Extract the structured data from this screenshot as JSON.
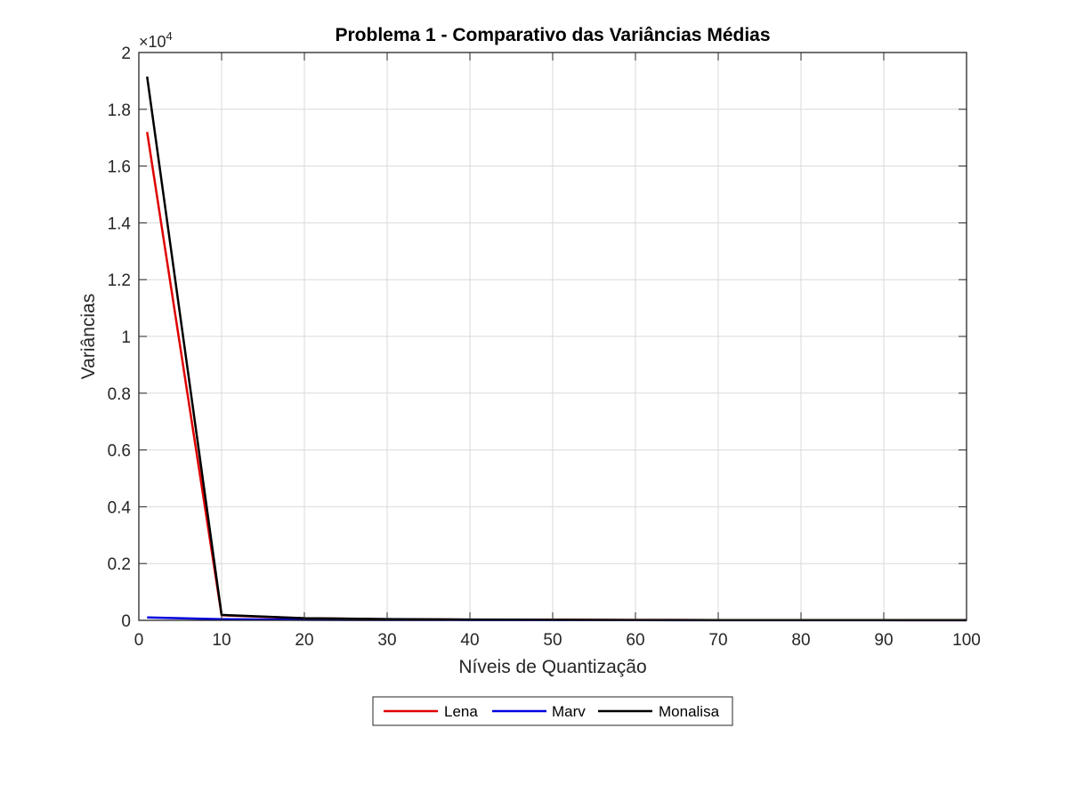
{
  "chart_data": {
    "type": "line",
    "title": "Problema 1 - Comparativo das Variâncias Médias",
    "xlabel": "Níveis de Quantização",
    "ylabel": "Variâncias",
    "xlim": [
      0,
      100
    ],
    "ylim": [
      0,
      20000
    ],
    "y_exponent_base": "×10",
    "y_exponent_power": "4",
    "x_ticks": [
      0,
      10,
      20,
      30,
      40,
      50,
      60,
      70,
      80,
      90,
      100
    ],
    "x_tick_labels": [
      "0",
      "10",
      "20",
      "30",
      "40",
      "50",
      "60",
      "70",
      "80",
      "90",
      "100"
    ],
    "y_ticks": [
      0,
      2000,
      4000,
      6000,
      8000,
      10000,
      12000,
      14000,
      16000,
      18000,
      20000
    ],
    "y_tick_labels": [
      "0",
      "0.2",
      "0.4",
      "0.6",
      "0.8",
      "1",
      "1.2",
      "1.4",
      "1.6",
      "1.8",
      "2"
    ],
    "grid": true,
    "legend_position": "bottom-outside",
    "series": [
      {
        "name": "Lena",
        "color": "#e00000",
        "x": [
          1,
          10,
          20,
          30,
          40,
          50,
          60,
          70,
          80,
          90,
          100
        ],
        "y": [
          17200,
          180,
          70,
          40,
          25,
          18,
          12,
          9,
          7,
          5,
          4
        ]
      },
      {
        "name": "Marv",
        "color": "#0000e0",
        "x": [
          1,
          10,
          20,
          30,
          40,
          50,
          60,
          70,
          80,
          90,
          100
        ],
        "y": [
          100,
          40,
          20,
          12,
          8,
          6,
          5,
          4,
          3,
          2,
          2
        ]
      },
      {
        "name": "Monalisa",
        "color": "#000000",
        "x": [
          1,
          10,
          20,
          30,
          40,
          50,
          60,
          70,
          80,
          90,
          100
        ],
        "y": [
          19150,
          190,
          75,
          45,
          28,
          20,
          14,
          10,
          8,
          6,
          5
        ]
      }
    ]
  }
}
